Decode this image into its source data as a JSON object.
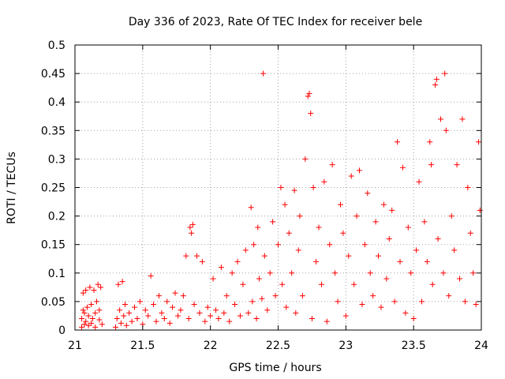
{
  "chart_data": {
    "type": "scatter",
    "title": "Day 336 of 2023, Rate Of TEC Index for receiver bele",
    "xlabel": "GPS time / hours",
    "ylabel": "ROTI / TECUs",
    "xlim": [
      21,
      24
    ],
    "ylim": [
      0,
      0.5
    ],
    "xticks": [
      "21",
      "21.5",
      "22",
      "22.5",
      "23",
      "23.5",
      "24"
    ],
    "yticks": [
      "0",
      "0.05",
      "0.1",
      "0.15",
      "0.2",
      "0.25",
      "0.3",
      "0.35",
      "0.4",
      "0.45",
      "0.5"
    ],
    "grid": true,
    "marker": "plus",
    "color": "#ff0000",
    "points": [
      [
        21.05,
        0.005
      ],
      [
        21.05,
        0.02
      ],
      [
        21.06,
        0.035
      ],
      [
        21.06,
        0.065
      ],
      [
        21.07,
        0.01
      ],
      [
        21.07,
        0.03
      ],
      [
        21.08,
        0.07
      ],
      [
        21.08,
        0.015
      ],
      [
        21.09,
        0.04
      ],
      [
        21.1,
        0.008
      ],
      [
        21.1,
        0.025
      ],
      [
        21.11,
        0.075
      ],
      [
        21.12,
        0.012
      ],
      [
        21.12,
        0.045
      ],
      [
        21.13,
        0.02
      ],
      [
        21.14,
        0.07
      ],
      [
        21.15,
        0.03
      ],
      [
        21.15,
        0.005
      ],
      [
        21.16,
        0.05
      ],
      [
        21.17,
        0.08
      ],
      [
        21.18,
        0.018
      ],
      [
        21.18,
        0.035
      ],
      [
        21.19,
        0.075
      ],
      [
        21.2,
        0.01
      ],
      [
        21.3,
        0.005
      ],
      [
        21.31,
        0.02
      ],
      [
        21.32,
        0.08
      ],
      [
        21.33,
        0.035
      ],
      [
        21.34,
        0.012
      ],
      [
        21.35,
        0.085
      ],
      [
        21.36,
        0.025
      ],
      [
        21.37,
        0.045
      ],
      [
        21.38,
        0.008
      ],
      [
        21.4,
        0.03
      ],
      [
        21.42,
        0.015
      ],
      [
        21.44,
        0.04
      ],
      [
        21.46,
        0.02
      ],
      [
        21.48,
        0.05
      ],
      [
        21.5,
        0.01
      ],
      [
        21.52,
        0.035
      ],
      [
        21.54,
        0.025
      ],
      [
        21.56,
        0.095
      ],
      [
        21.58,
        0.045
      ],
      [
        21.6,
        0.015
      ],
      [
        21.62,
        0.06
      ],
      [
        21.64,
        0.03
      ],
      [
        21.66,
        0.02
      ],
      [
        21.68,
        0.05
      ],
      [
        21.7,
        0.012
      ],
      [
        21.72,
        0.04
      ],
      [
        21.74,
        0.065
      ],
      [
        21.76,
        0.025
      ],
      [
        21.78,
        0.035
      ],
      [
        21.8,
        0.06
      ],
      [
        21.82,
        0.13
      ],
      [
        21.84,
        0.02
      ],
      [
        21.85,
        0.18
      ],
      [
        21.86,
        0.17
      ],
      [
        21.87,
        0.185
      ],
      [
        21.88,
        0.045
      ],
      [
        21.9,
        0.13
      ],
      [
        21.92,
        0.03
      ],
      [
        21.94,
        0.12
      ],
      [
        21.96,
        0.015
      ],
      [
        21.98,
        0.04
      ],
      [
        22.0,
        0.025
      ],
      [
        22.02,
        0.09
      ],
      [
        22.04,
        0.035
      ],
      [
        22.06,
        0.02
      ],
      [
        22.08,
        0.11
      ],
      [
        22.1,
        0.03
      ],
      [
        22.12,
        0.06
      ],
      [
        22.14,
        0.015
      ],
      [
        22.16,
        0.1
      ],
      [
        22.18,
        0.045
      ],
      [
        22.2,
        0.12
      ],
      [
        22.22,
        0.025
      ],
      [
        22.24,
        0.08
      ],
      [
        22.26,
        0.14
      ],
      [
        22.28,
        0.03
      ],
      [
        22.3,
        0.215
      ],
      [
        22.31,
        0.05
      ],
      [
        22.32,
        0.15
      ],
      [
        22.34,
        0.02
      ],
      [
        22.35,
        0.18
      ],
      [
        22.36,
        0.09
      ],
      [
        22.38,
        0.055
      ],
      [
        22.39,
        0.45
      ],
      [
        22.4,
        0.13
      ],
      [
        22.42,
        0.035
      ],
      [
        22.44,
        0.1
      ],
      [
        22.46,
        0.19
      ],
      [
        22.48,
        0.06
      ],
      [
        22.5,
        0.15
      ],
      [
        22.52,
        0.25
      ],
      [
        22.53,
        0.08
      ],
      [
        22.55,
        0.22
      ],
      [
        22.56,
        0.04
      ],
      [
        22.58,
        0.17
      ],
      [
        22.6,
        0.1
      ],
      [
        22.62,
        0.245
      ],
      [
        22.63,
        0.03
      ],
      [
        22.65,
        0.14
      ],
      [
        22.66,
        0.2
      ],
      [
        22.68,
        0.06
      ],
      [
        22.7,
        0.3
      ],
      [
        22.72,
        0.41
      ],
      [
        22.73,
        0.415
      ],
      [
        22.74,
        0.38
      ],
      [
        22.75,
        0.02
      ],
      [
        22.76,
        0.25
      ],
      [
        22.78,
        0.12
      ],
      [
        22.8,
        0.18
      ],
      [
        22.82,
        0.08
      ],
      [
        22.84,
        0.26
      ],
      [
        22.86,
        0.015
      ],
      [
        22.88,
        0.15
      ],
      [
        22.9,
        0.29
      ],
      [
        22.92,
        0.1
      ],
      [
        22.94,
        0.05
      ],
      [
        22.96,
        0.22
      ],
      [
        22.98,
        0.17
      ],
      [
        23.0,
        0.025
      ],
      [
        23.02,
        0.13
      ],
      [
        23.04,
        0.27
      ],
      [
        23.06,
        0.08
      ],
      [
        23.08,
        0.2
      ],
      [
        23.1,
        0.28
      ],
      [
        23.12,
        0.045
      ],
      [
        23.14,
        0.15
      ],
      [
        23.16,
        0.24
      ],
      [
        23.18,
        0.1
      ],
      [
        23.2,
        0.06
      ],
      [
        23.22,
        0.19
      ],
      [
        23.24,
        0.13
      ],
      [
        23.26,
        0.04
      ],
      [
        23.28,
        0.22
      ],
      [
        23.3,
        0.09
      ],
      [
        23.32,
        0.16
      ],
      [
        23.34,
        0.21
      ],
      [
        23.36,
        0.05
      ],
      [
        23.38,
        0.33
      ],
      [
        23.4,
        0.12
      ],
      [
        23.42,
        0.285
      ],
      [
        23.44,
        0.03
      ],
      [
        23.46,
        0.18
      ],
      [
        23.48,
        0.1
      ],
      [
        23.5,
        0.02
      ],
      [
        23.52,
        0.14
      ],
      [
        23.54,
        0.26
      ],
      [
        23.56,
        0.05
      ],
      [
        23.58,
        0.19
      ],
      [
        23.6,
        0.12
      ],
      [
        23.62,
        0.33
      ],
      [
        23.63,
        0.29
      ],
      [
        23.64,
        0.08
      ],
      [
        23.66,
        0.43
      ],
      [
        23.67,
        0.44
      ],
      [
        23.68,
        0.16
      ],
      [
        23.7,
        0.37
      ],
      [
        23.72,
        0.1
      ],
      [
        23.73,
        0.45
      ],
      [
        23.74,
        0.35
      ],
      [
        23.76,
        0.06
      ],
      [
        23.78,
        0.2
      ],
      [
        23.8,
        0.14
      ],
      [
        23.82,
        0.29
      ],
      [
        23.84,
        0.09
      ],
      [
        23.86,
        0.37
      ],
      [
        23.88,
        0.05
      ],
      [
        23.9,
        0.25
      ],
      [
        23.92,
        0.17
      ],
      [
        23.94,
        0.1
      ],
      [
        23.96,
        0.045
      ],
      [
        23.98,
        0.33
      ],
      [
        23.99,
        0.21
      ]
    ]
  }
}
